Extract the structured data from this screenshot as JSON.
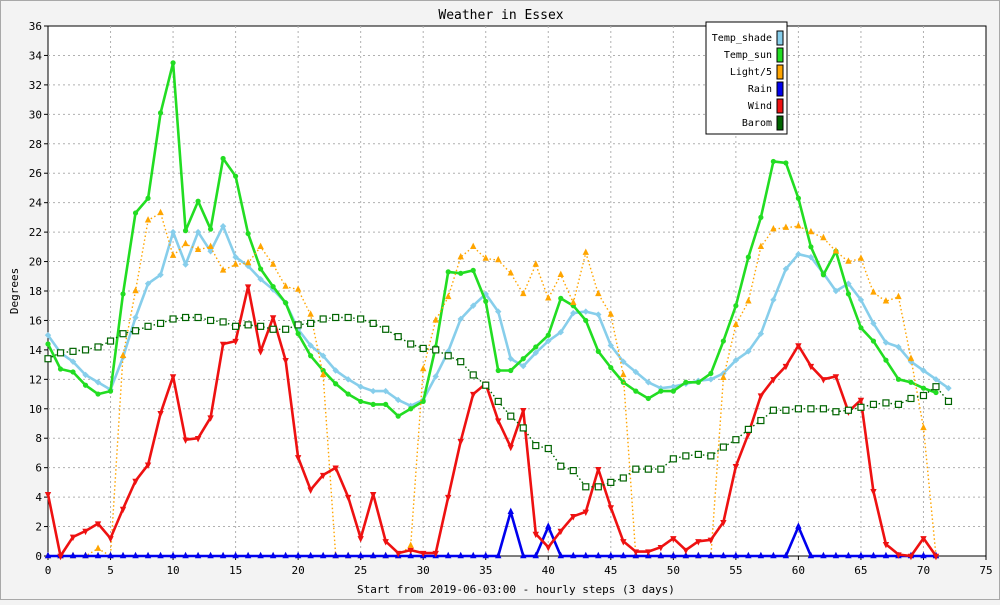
{
  "chart_data": {
    "type": "line",
    "title": "Weather in Essex",
    "xlabel": "Start from 2019-06-03:00 - hourly steps (3 days)",
    "ylabel": "Degrees",
    "xlim": [
      0,
      75
    ],
    "ylim": [
      0,
      36
    ],
    "xticks": [
      0,
      5,
      10,
      15,
      20,
      25,
      30,
      35,
      40,
      45,
      50,
      55,
      60,
      65,
      70,
      75
    ],
    "yticks": [
      0,
      2,
      4,
      6,
      8,
      10,
      12,
      14,
      16,
      18,
      20,
      22,
      24,
      26,
      28,
      30,
      32,
      34,
      36
    ],
    "grid": true,
    "legend_position": "top-right",
    "series": [
      {
        "name": "Temp_shade",
        "color": "#87ceeb",
        "style": "solid",
        "marker": "diamond",
        "values": [
          15.0,
          13.8,
          13.2,
          12.3,
          11.8,
          11.3,
          13.5,
          16.2,
          18.5,
          19.1,
          22.0,
          19.8,
          22.0,
          20.7,
          22.4,
          20.3,
          19.7,
          18.8,
          18.1,
          17.2,
          15.4,
          14.3,
          13.6,
          12.6,
          12.0,
          11.5,
          11.2,
          11.2,
          10.6,
          10.2,
          10.6,
          12.2,
          13.9,
          16.1,
          17.0,
          17.8,
          16.6,
          13.4,
          12.9,
          13.8,
          14.6,
          15.2,
          16.5,
          16.6,
          16.4,
          14.3,
          13.2,
          12.5,
          11.8,
          11.4,
          11.5,
          11.7,
          11.9,
          12.0,
          12.4,
          13.3,
          13.9,
          15.1,
          17.4,
          19.5,
          20.5,
          20.3,
          19.2,
          18.0,
          18.5,
          17.4,
          15.8,
          14.5,
          14.2,
          13.2,
          12.6,
          12.0,
          11.4
        ]
      },
      {
        "name": "Temp_sun",
        "color": "#22dd22",
        "style": "solid",
        "marker": "circle",
        "values": [
          14.4,
          12.7,
          12.5,
          11.6,
          11.0,
          11.2,
          17.8,
          23.3,
          24.3,
          30.1,
          33.5,
          22.1,
          24.1,
          22.2,
          27.0,
          25.8,
          21.9,
          19.5,
          18.3,
          17.2,
          15.1,
          13.6,
          12.6,
          11.7,
          11.0,
          10.5,
          10.3,
          10.3,
          9.5,
          10.0,
          10.5,
          14.2,
          19.3,
          19.2,
          19.4,
          17.3,
          12.6,
          12.6,
          13.4,
          14.2,
          15.0,
          17.5,
          17.0,
          16.0,
          13.9,
          12.8,
          11.8,
          11.2,
          10.7,
          11.2,
          11.2,
          11.8,
          11.8,
          12.4,
          14.6,
          17.0,
          20.3,
          23.0,
          26.8,
          26.7,
          24.3,
          21.0,
          19.1,
          20.7,
          17.8,
          15.5,
          14.6,
          13.3,
          12.0,
          11.8,
          11.4,
          11.1
        ]
      },
      {
        "name": "Light/5",
        "color": "#ffa500",
        "style": "dotted",
        "marker": "triangle-up",
        "values": [
          0.0,
          0.0,
          0.0,
          0.0,
          0.5,
          0.0,
          13.6,
          18.0,
          22.8,
          23.3,
          20.4,
          21.2,
          20.8,
          21.0,
          19.4,
          19.8,
          19.9,
          21.0,
          19.8,
          18.3,
          18.1,
          16.4,
          12.3,
          0.0,
          0.0,
          0.0,
          0.0,
          0.0,
          0.0,
          0.7,
          12.7,
          16.0,
          17.6,
          20.3,
          21.0,
          20.2,
          20.1,
          19.2,
          17.8,
          19.8,
          17.5,
          19.1,
          17.2,
          20.6,
          17.8,
          16.4,
          12.3,
          0.0,
          0.0,
          0.0,
          0.0,
          0.0,
          0.0,
          0.0,
          12.1,
          15.7,
          17.3,
          21.0,
          22.2,
          22.3,
          22.4,
          22.0,
          21.6,
          20.7,
          20.0,
          20.2,
          17.9,
          17.3,
          17.6,
          13.4,
          8.7,
          0.0
        ]
      },
      {
        "name": "Rain",
        "color": "#0000ee",
        "style": "solid",
        "marker": "triangle-up",
        "values": [
          0,
          0,
          0,
          0,
          0,
          0,
          0,
          0,
          0,
          0,
          0,
          0,
          0,
          0,
          0,
          0,
          0,
          0,
          0,
          0,
          0,
          0,
          0,
          0,
          0,
          0,
          0,
          0,
          0,
          0,
          0,
          0,
          0,
          0,
          0,
          0,
          0,
          3.0,
          0,
          0,
          2.0,
          0,
          0,
          0,
          0,
          0,
          0,
          0,
          0,
          0,
          0,
          0,
          0,
          0,
          0,
          0,
          0,
          0,
          0,
          0,
          2.0,
          0,
          0,
          0,
          0,
          0,
          0,
          0,
          0,
          0,
          0,
          0
        ]
      },
      {
        "name": "Wind",
        "color": "#ee1111",
        "style": "solid",
        "marker": "triangle-down",
        "values": [
          4.2,
          0.0,
          1.3,
          1.7,
          2.2,
          1.2,
          3.2,
          5.1,
          6.2,
          9.7,
          12.2,
          7.9,
          8.0,
          9.4,
          14.4,
          14.6,
          18.3,
          13.9,
          16.2,
          13.3,
          6.7,
          4.5,
          5.5,
          6.0,
          4.0,
          1.2,
          4.2,
          1.0,
          0.2,
          0.4,
          0.2,
          0.2,
          4.0,
          7.8,
          11.0,
          11.7,
          9.2,
          7.4,
          9.9,
          1.5,
          0.6,
          1.7,
          2.7,
          3.0,
          5.9,
          3.3,
          1.0,
          0.3,
          0.3,
          0.6,
          1.2,
          0.4,
          1.0,
          1.1,
          2.3,
          6.1,
          8.3,
          10.9,
          12.0,
          12.9,
          14.3,
          12.9,
          12.0,
          12.2,
          9.8,
          10.6,
          4.4,
          0.8,
          0.1,
          0.0,
          1.2,
          0.0
        ]
      },
      {
        "name": "Barom",
        "color": "#006400",
        "style": "dotted",
        "marker": "square",
        "values": [
          13.4,
          13.8,
          13.9,
          14.0,
          14.2,
          14.6,
          15.1,
          15.3,
          15.6,
          15.8,
          16.1,
          16.2,
          16.2,
          16.0,
          15.9,
          15.6,
          15.7,
          15.6,
          15.4,
          15.4,
          15.7,
          15.8,
          16.1,
          16.2,
          16.2,
          16.1,
          15.8,
          15.4,
          14.9,
          14.4,
          14.1,
          14.0,
          13.6,
          13.2,
          12.3,
          11.6,
          10.5,
          9.5,
          8.7,
          7.5,
          7.3,
          6.1,
          5.8,
          4.7,
          4.7,
          5.0,
          5.3,
          5.9,
          5.9,
          5.9,
          6.6,
          6.8,
          6.9,
          6.8,
          7.4,
          7.9,
          8.6,
          9.2,
          9.9,
          9.9,
          10.0,
          10.0,
          10.0,
          9.8,
          9.9,
          10.1,
          10.3,
          10.4,
          10.3,
          10.7,
          10.9,
          11.5,
          10.5
        ]
      }
    ]
  }
}
